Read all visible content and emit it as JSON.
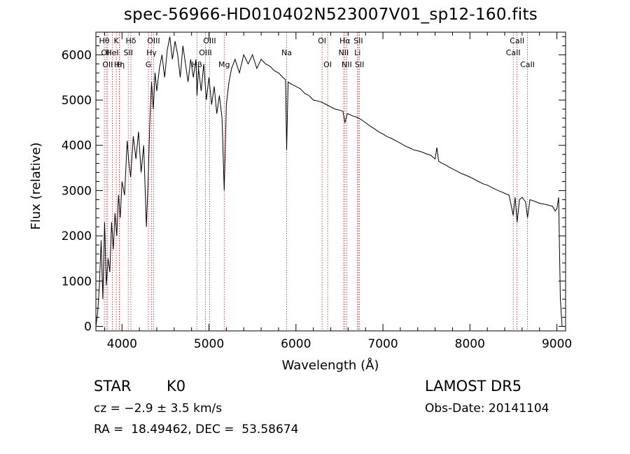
{
  "title": "spec-56966-HD010402N523007V01_sp12-160.fits",
  "info": {
    "class_label": "STAR",
    "subclass": "K0",
    "survey": "LAMOST DR5",
    "cz": "cz = −2.9 ± 3.5 km/s",
    "obs_date": "Obs-Date: 20141104",
    "radec": "RA =  18.49462, DEC =  53.58674"
  },
  "chart_data": {
    "type": "line",
    "title": "spec-56966-HD010402N523007V01_sp12-160.fits",
    "xlabel": "Wavelength (Å)",
    "ylabel": "Flux (relative)",
    "xlim": [
      3700,
      9100
    ],
    "ylim": [
      -100,
      6500
    ],
    "xticks": [
      4000,
      5000,
      6000,
      7000,
      8000,
      9000
    ],
    "yticks": [
      0,
      1000,
      2000,
      3000,
      4000,
      5000,
      6000
    ],
    "line_color": "#000000",
    "marker_color": "#cc2222",
    "series": [
      {
        "x": [
          3700,
          3720,
          3740,
          3760,
          3780,
          3800,
          3820,
          3840,
          3860,
          3880,
          3900,
          3920,
          3940,
          3960,
          3980,
          4000,
          4030,
          4060,
          4080,
          4100,
          4130,
          4160,
          4190,
          4220,
          4250,
          4280,
          4300,
          4320,
          4340,
          4360,
          4380,
          4400,
          4430,
          4460,
          4490,
          4520,
          4550,
          4580,
          4610,
          4640,
          4670,
          4700,
          4730,
          4760,
          4790,
          4820,
          4850,
          4862,
          4880,
          4910,
          4940,
          4970,
          5000,
          5030,
          5060,
          5090,
          5120,
          5150,
          5175,
          5200,
          5230,
          5260,
          5300,
          5350,
          5400,
          5450,
          5500,
          5550,
          5600,
          5650,
          5700,
          5750,
          5800,
          5850,
          5880,
          5893,
          5910,
          5950,
          6000,
          6050,
          6100,
          6150,
          6200,
          6250,
          6300,
          6350,
          6400,
          6450,
          6500,
          6540,
          6563,
          6590,
          6620,
          6650,
          6700,
          6750,
          6800,
          6850,
          6900,
          6950,
          7000,
          7050,
          7100,
          7150,
          7200,
          7250,
          7300,
          7350,
          7400,
          7450,
          7500,
          7550,
          7600,
          7620,
          7640,
          7680,
          7720,
          7760,
          7800,
          7850,
          7900,
          7950,
          8000,
          8050,
          8100,
          8150,
          8200,
          8250,
          8300,
          8350,
          8400,
          8450,
          8498,
          8520,
          8542,
          8570,
          8600,
          8640,
          8662,
          8690,
          8720,
          8760,
          8800,
          8850,
          8900,
          8950,
          8980,
          9000,
          9020,
          9040,
          9060
        ],
        "values": [
          0,
          300,
          900,
          1900,
          600,
          2300,
          900,
          1500,
          1200,
          2300,
          1700,
          2500,
          2000,
          2900,
          2400,
          3200,
          2900,
          4100,
          3600,
          3300,
          4200,
          3700,
          4300,
          3400,
          4000,
          2200,
          3200,
          4500,
          5400,
          4800,
          5600,
          5200,
          5700,
          6000,
          5500,
          6100,
          6400,
          5900,
          6300,
          6000,
          5500,
          6200,
          5800,
          5400,
          5900,
          5500,
          5900,
          5100,
          5700,
          5200,
          5800,
          5000,
          5500,
          4900,
          5300,
          4700,
          5100,
          4600,
          3000,
          4900,
          5400,
          5700,
          5900,
          5600,
          6000,
          5800,
          6000,
          5700,
          5900,
          5800,
          5750,
          5650,
          5600,
          5500,
          5450,
          3900,
          5400,
          5350,
          5300,
          5250,
          5150,
          5100,
          5000,
          4980,
          4950,
          4900,
          4850,
          4800,
          4780,
          4750,
          4500,
          4700,
          4680,
          4650,
          4620,
          4570,
          4500,
          4430,
          4370,
          4300,
          4250,
          4190,
          4150,
          4100,
          4050,
          3990,
          3950,
          3900,
          3880,
          3850,
          3810,
          3780,
          3700,
          3950,
          3650,
          3600,
          3570,
          3520,
          3480,
          3430,
          3380,
          3340,
          3300,
          3250,
          3200,
          3150,
          3120,
          3070,
          3020,
          2980,
          2940,
          2900,
          2450,
          2850,
          2300,
          2800,
          2850,
          2750,
          2400,
          2800,
          2780,
          2750,
          2720,
          2700,
          2680,
          2650,
          2550,
          2600,
          2850,
          600,
          0
        ]
      }
    ],
    "lines": [
      {
        "wl": 3797,
        "name": "Hθ",
        "row": 0
      },
      {
        "wl": 3820,
        "name": "OII",
        "row": 1
      },
      {
        "wl": 3835,
        "name": "OII",
        "row": 2
      },
      {
        "wl": 3889,
        "name": "HeI",
        "row": 1
      },
      {
        "wl": 3934,
        "name": "K",
        "row": 0
      },
      {
        "wl": 3970,
        "name": "Hη",
        "row": 2
      },
      {
        "wl": 3969,
        "name": "H",
        "row": 2
      },
      {
        "wl": 4072,
        "name": "SII",
        "row": 1
      },
      {
        "wl": 4102,
        "name": "Hδ",
        "row": 0
      },
      {
        "wl": 4304,
        "name": "G",
        "row": 2
      },
      {
        "wl": 4340,
        "name": "Hγ",
        "row": 1
      },
      {
        "wl": 4363,
        "name": "OIII",
        "row": 0
      },
      {
        "wl": 4861,
        "name": "Hβ",
        "row": 2
      },
      {
        "wl": 4959,
        "name": "OIII",
        "row": 1
      },
      {
        "wl": 5007,
        "name": "OIII",
        "row": 0
      },
      {
        "wl": 5175,
        "name": "Mg",
        "row": 2
      },
      {
        "wl": 5893,
        "name": "Na",
        "row": 1
      },
      {
        "wl": 6300,
        "name": "OI",
        "row": 0
      },
      {
        "wl": 6364,
        "name": "OI",
        "row": 2
      },
      {
        "wl": 6548,
        "name": "NII",
        "row": 1
      },
      {
        "wl": 6563,
        "name": "Hα",
        "row": 0
      },
      {
        "wl": 6584,
        "name": "NII",
        "row": 2
      },
      {
        "wl": 6708,
        "name": "Li",
        "row": 1
      },
      {
        "wl": 6717,
        "name": "SII",
        "row": 0
      },
      {
        "wl": 6731,
        "name": "SII",
        "row": 2
      },
      {
        "wl": 8498,
        "name": "CaII",
        "row": 1
      },
      {
        "wl": 8542,
        "name": "CaII",
        "row": 0
      },
      {
        "wl": 8662,
        "name": "CaII",
        "row": 2
      }
    ]
  }
}
